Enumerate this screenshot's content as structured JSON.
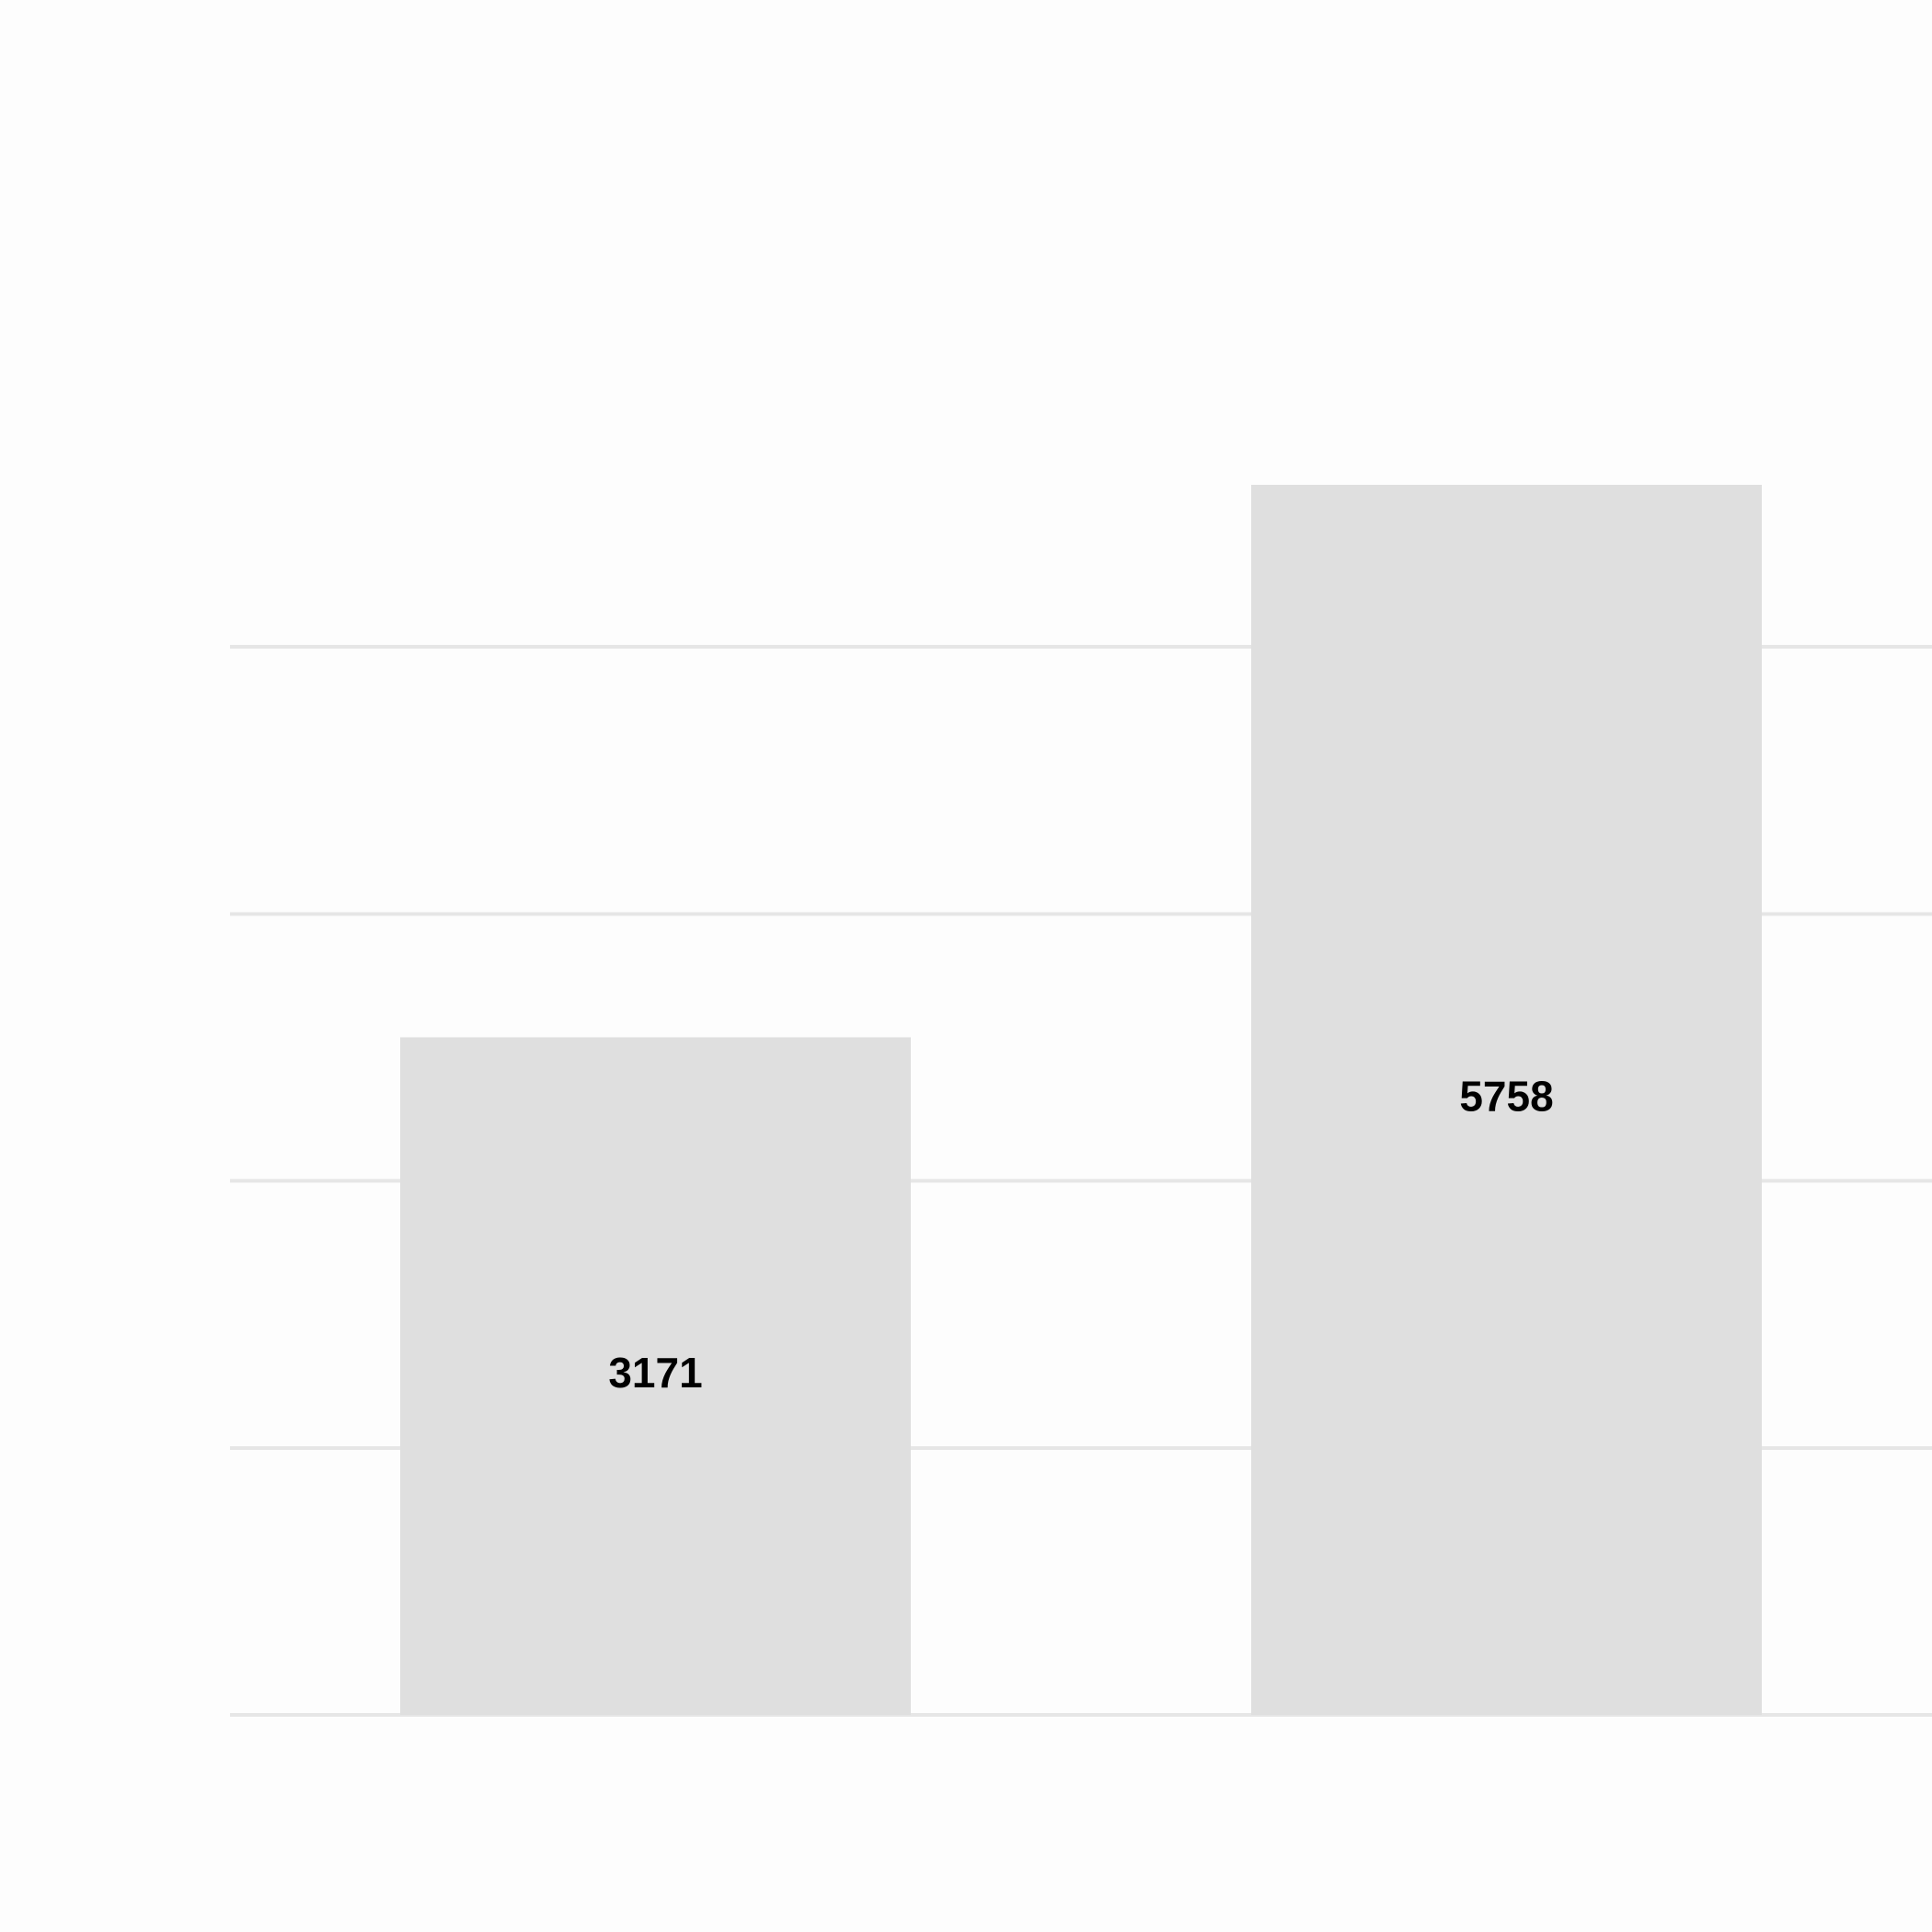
{
  "chart_data": {
    "type": "bar",
    "title": "",
    "xlabel": "",
    "ylabel": "",
    "categories": [
      "",
      ""
    ],
    "series": [
      {
        "values": [
          3171,
          5758
        ],
        "data_labels": [
          "3171",
          "5758"
        ],
        "color": "#dfdfdf"
      }
    ],
    "ylim": [
      0,
      6250
    ],
    "y_gridlines": [
      0,
      1250,
      2500,
      3750,
      5000
    ],
    "grid": "horizontal",
    "legend": "none",
    "data_label_position": "middle",
    "colors": {
      "background": "#fdfdfd",
      "grid": "#e6e6e6",
      "bar": "#dfdfdf",
      "label_text": "#000000"
    }
  }
}
